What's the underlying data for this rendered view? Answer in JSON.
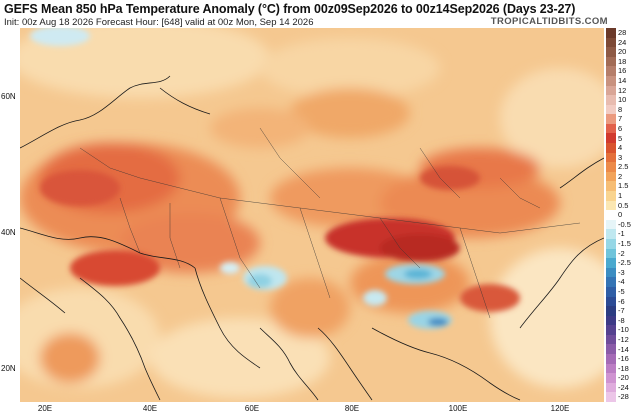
{
  "header": {
    "title": "GEFS Mean 850 hPa Temperature Anomaly (°C) from 00z09Sep2026 to 00z14Sep2026 (Days 23-27)",
    "subtitle": "Init: 00z Aug 18 2026   Forecast Hour: [648]   valid at 00z Mon, Sep 14 2026",
    "brand": "TROPICALTIDBITS.COM"
  },
  "map": {
    "lat_labels": [
      "60N",
      "40N",
      "20N"
    ],
    "lon_labels": [
      "20E",
      "40E",
      "60E",
      "80E",
      "100E",
      "120E"
    ]
  },
  "colorbar": {
    "labels": [
      "28",
      "24",
      "20",
      "18",
      "16",
      "14",
      "12",
      "10",
      "8",
      "7",
      "6",
      "5",
      "4",
      "3",
      "2.5",
      "2",
      "1.5",
      "1",
      "0.5",
      "0",
      "-0.5",
      "-1",
      "-1.5",
      "-2",
      "-2.5",
      "-3",
      "-4",
      "-5",
      "-6",
      "-7",
      "-8",
      "-10",
      "-12",
      "-14",
      "-16",
      "-18",
      "-20",
      "-24",
      "-28"
    ],
    "colors": [
      "#6b3a2a",
      "#7d4a36",
      "#8e5a45",
      "#a26c56",
      "#b57e6a",
      "#c8927f",
      "#d9a697",
      "#e8bcb0",
      "#f2ccc3",
      "#eb9a7f",
      "#e2614b",
      "#d13a2e",
      "#d9542f",
      "#e4703b",
      "#ec8a49",
      "#f2a35a",
      "#f6bd74",
      "#f9d48f",
      "#fbe7b2",
      "#ffffff",
      "#e6f5f8",
      "#bfe8f0",
      "#96d7e6",
      "#6fc4db",
      "#4aa9cf",
      "#3b8dc2",
      "#3474b5",
      "#2f5ea6",
      "#2c4b95",
      "#2c3d82",
      "#3d3a86",
      "#55418f",
      "#6f4c9a",
      "#8a5ba8",
      "#a46ab6",
      "#bb7dc4",
      "#cf93d1",
      "#dfacdd",
      "#ecc6e8"
    ]
  }
}
